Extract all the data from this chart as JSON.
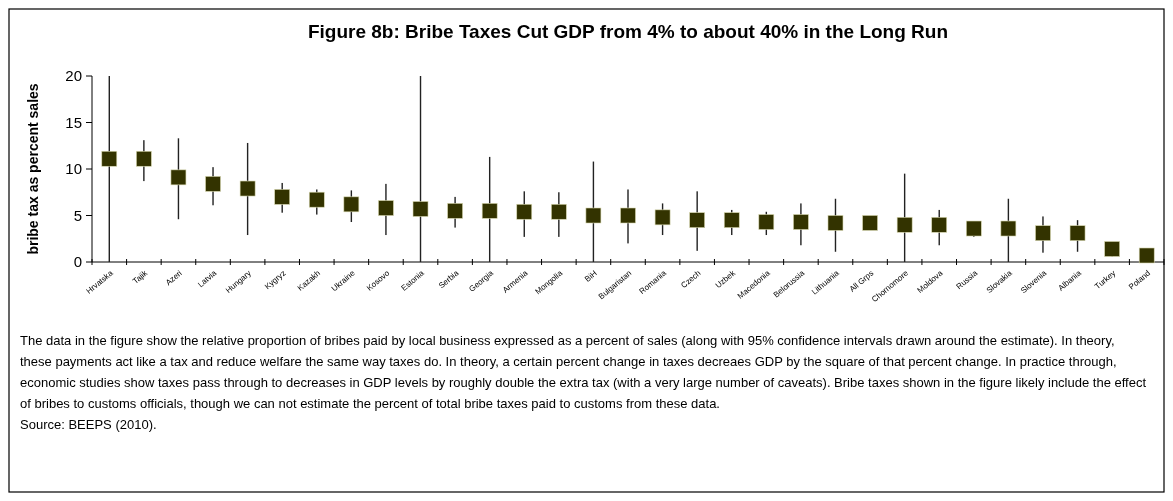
{
  "chart_data": {
    "type": "scatter",
    "title": "Figure 8b: Bribe Taxes Cut GDP from 4% to about 40% in the Long Run",
    "ylabel": "bribe tax as percent sales",
    "categories": [
      "Hrvatska",
      "Tajik",
      "Azeri",
      "Latvia",
      "Hungary",
      "Kygryz",
      "Kazakh",
      "Ukraine",
      "Kosovo",
      "Estonia",
      "Serbia",
      "Georgia",
      "Armenia",
      "Mongolia",
      "BiH",
      "Bulgaristan",
      "Romania",
      "Czech",
      "Uzbek",
      "Macedonia",
      "Belorussia",
      "Lithuania",
      "All Grps",
      "Chornomore",
      "Moldova",
      "Russia",
      "Slovakia",
      "Slovenia",
      "Albania",
      "Turkey",
      "Poland"
    ],
    "series": [
      {
        "color": "#333300",
        "values": [
          11.1,
          11.1,
          9.1,
          8.4,
          7.9,
          7.0,
          6.7,
          6.2,
          5.8,
          5.7,
          5.5,
          5.5,
          5.4,
          5.4,
          5.0,
          5.0,
          4.8,
          4.5,
          4.5,
          4.3,
          4.3,
          4.2,
          4.2,
          4.0,
          4.0,
          3.6,
          3.6,
          3.1,
          3.1,
          1.4,
          0.7
        ],
        "errors": [
          [
            0,
            20
          ],
          [
            8.7,
            13.1
          ],
          [
            4.6,
            13.3
          ],
          [
            6.1,
            10.2
          ],
          [
            2.9,
            12.8
          ],
          [
            5.3,
            8.5
          ],
          [
            5.1,
            7.8
          ],
          [
            4.3,
            7.7
          ],
          [
            2.9,
            8.4
          ],
          [
            0,
            20
          ],
          [
            3.7,
            7.0
          ],
          [
            0,
            11.3
          ],
          [
            2.7,
            7.6
          ],
          [
            2.7,
            7.5
          ],
          [
            0,
            10.8
          ],
          [
            2.0,
            7.8
          ],
          [
            2.9,
            6.3
          ],
          [
            1.2,
            7.6
          ],
          [
            2.9,
            5.6
          ],
          [
            2.9,
            5.4
          ],
          [
            1.8,
            6.3
          ],
          [
            1.1,
            6.8
          ],
          null,
          [
            0,
            9.5
          ],
          [
            1.8,
            5.6
          ],
          [
            2.7,
            3.6
          ],
          [
            0,
            6.8
          ],
          [
            1.0,
            4.9
          ],
          [
            1.1,
            4.5
          ],
          [
            0.6,
            1.4
          ],
          null
        ]
      }
    ],
    "ylim": [
      0,
      20
    ],
    "yticks": [
      0,
      5,
      10,
      15,
      20
    ],
    "marker": "square",
    "annotations": [
      "The data in the figure show the relative proportion of bribes paid by local business expressed as a percent of sales (along with 95% confidence intervals drawn around the estimate). In theory, these payments act like a tax and reduce welfare the same way taxes do. In theory, a certain percent change in taxes decreaes GDP by the square of that percent change. In practice through, economic studies show taxes pass through to decreases in GDP levels by roughly double the extra tax (with a very large number of caveats). Bribe taxes shown in the figure likely include the effect of bribes to customs officials, though we can not estimate the percent of total bribe taxes paid to customs from these data.",
      "Source: BEEPS (2010)."
    ]
  }
}
